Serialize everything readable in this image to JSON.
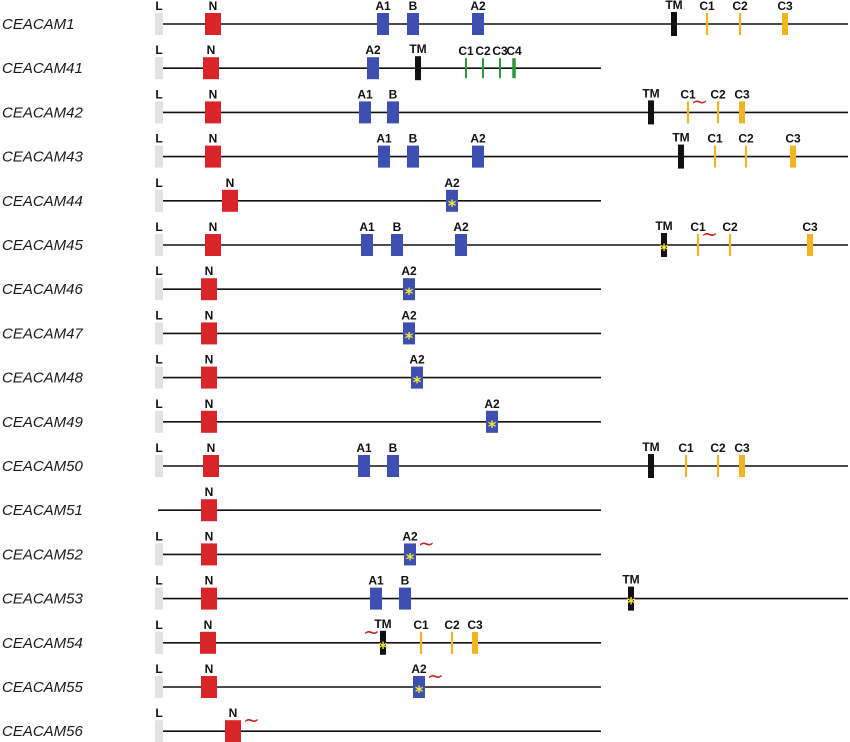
{
  "colors": {
    "L": "#e2e2e2",
    "N": "#d9252a",
    "A1": "#3d4fb0",
    "B": "#3d4fb0",
    "A2": "#3d4fb0",
    "TM": "#111111",
    "C_yellow": "#f2b51f",
    "C_green": "#2b9a3a",
    "star": "#f7ec2b",
    "tilde": "#cc1f1f"
  },
  "legend_symbols": {
    "star": "*",
    "tilde": "~"
  },
  "genes": [
    {
      "name": "CEACAM1",
      "long": true,
      "exons": [
        {
          "t": "L",
          "label": "L"
        },
        {
          "t": "N",
          "label": "N"
        },
        {
          "t": "A1",
          "label": "A1"
        },
        {
          "t": "B",
          "label": "B"
        },
        {
          "t": "A2",
          "label": "A2"
        },
        {
          "t": "TM",
          "label": "TM"
        },
        {
          "t": "C1",
          "label": "C1"
        },
        {
          "t": "C2",
          "label": "C2"
        },
        {
          "t": "C3",
          "label": "C3"
        }
      ]
    },
    {
      "name": "CEACAM41",
      "long": false,
      "exons": [
        {
          "t": "L",
          "label": "L"
        },
        {
          "t": "N",
          "label": "N"
        },
        {
          "t": "A2",
          "label": "A2"
        },
        {
          "t": "TM",
          "label": "TM"
        },
        {
          "t": "C1g",
          "label": "C1"
        },
        {
          "t": "C2g",
          "label": "C2"
        },
        {
          "t": "C3g",
          "label": "C3"
        },
        {
          "t": "C4g",
          "label": "C4"
        }
      ]
    },
    {
      "name": "CEACAM42",
      "long": true,
      "exons": [
        {
          "t": "L",
          "label": "L"
        },
        {
          "t": "N",
          "label": "N"
        },
        {
          "t": "A1",
          "label": "A1"
        },
        {
          "t": "B",
          "label": "B"
        },
        {
          "t": "TM",
          "label": "TM"
        },
        {
          "t": "C1",
          "label": "C1",
          "tilde": true
        },
        {
          "t": "C2",
          "label": "C2"
        },
        {
          "t": "C3",
          "label": "C3"
        }
      ]
    },
    {
      "name": "CEACAM43",
      "long": true,
      "exons": [
        {
          "t": "L",
          "label": "L"
        },
        {
          "t": "N",
          "label": "N"
        },
        {
          "t": "A1",
          "label": "A1"
        },
        {
          "t": "B",
          "label": "B"
        },
        {
          "t": "A2",
          "label": "A2"
        },
        {
          "t": "TM",
          "label": "TM"
        },
        {
          "t": "C1",
          "label": "C1"
        },
        {
          "t": "C2",
          "label": "C2"
        },
        {
          "t": "C3",
          "label": "C3"
        }
      ]
    },
    {
      "name": "CEACAM44",
      "long": false,
      "exons": [
        {
          "t": "L",
          "label": "L"
        },
        {
          "t": "N",
          "label": "N"
        },
        {
          "t": "A2",
          "label": "A2",
          "star": true
        }
      ]
    },
    {
      "name": "CEACAM45",
      "long": true,
      "exons": [
        {
          "t": "L",
          "label": "L"
        },
        {
          "t": "N",
          "label": "N"
        },
        {
          "t": "A1",
          "label": "A1"
        },
        {
          "t": "B",
          "label": "B"
        },
        {
          "t": "A2",
          "label": "A2"
        },
        {
          "t": "TM",
          "label": "TM",
          "star": true
        },
        {
          "t": "C1",
          "label": "C1",
          "tilde": true
        },
        {
          "t": "C2",
          "label": "C2"
        },
        {
          "t": "C3",
          "label": "C3"
        }
      ]
    },
    {
      "name": "CEACAM46",
      "long": false,
      "exons": [
        {
          "t": "L",
          "label": "L"
        },
        {
          "t": "N",
          "label": "N"
        },
        {
          "t": "A2",
          "label": "A2",
          "star": true
        }
      ]
    },
    {
      "name": "CEACAM47",
      "long": false,
      "exons": [
        {
          "t": "L",
          "label": "L"
        },
        {
          "t": "N",
          "label": "N"
        },
        {
          "t": "A2",
          "label": "A2",
          "star": true
        }
      ]
    },
    {
      "name": "CEACAM48",
      "long": false,
      "exons": [
        {
          "t": "L",
          "label": "L"
        },
        {
          "t": "N",
          "label": "N"
        },
        {
          "t": "A2",
          "label": "A2",
          "star": true
        }
      ]
    },
    {
      "name": "CEACAM49",
      "long": false,
      "exons": [
        {
          "t": "L",
          "label": "L"
        },
        {
          "t": "N",
          "label": "N"
        },
        {
          "t": "A2",
          "label": "A2",
          "star": true
        }
      ]
    },
    {
      "name": "CEACAM50",
      "long": true,
      "exons": [
        {
          "t": "L",
          "label": "L"
        },
        {
          "t": "N",
          "label": "N"
        },
        {
          "t": "A1",
          "label": "A1"
        },
        {
          "t": "B",
          "label": "B"
        },
        {
          "t": "TM",
          "label": "TM"
        },
        {
          "t": "C1",
          "label": "C1"
        },
        {
          "t": "C2",
          "label": "C2"
        },
        {
          "t": "C3",
          "label": "C3"
        }
      ]
    },
    {
      "name": "CEACAM51",
      "long": false,
      "exons": [
        {
          "t": "N",
          "label": "N"
        }
      ]
    },
    {
      "name": "CEACAM52",
      "long": false,
      "exons": [
        {
          "t": "L",
          "label": "L"
        },
        {
          "t": "N",
          "label": "N"
        },
        {
          "t": "A2",
          "label": "A2",
          "star": true,
          "tilde": true
        }
      ]
    },
    {
      "name": "CEACAM53",
      "long": true,
      "exons": [
        {
          "t": "L",
          "label": "L"
        },
        {
          "t": "N",
          "label": "N"
        },
        {
          "t": "A1",
          "label": "A1"
        },
        {
          "t": "B",
          "label": "B"
        },
        {
          "t": "TM",
          "label": "TM",
          "star": true
        }
      ]
    },
    {
      "name": "CEACAM54",
      "long": false,
      "exons": [
        {
          "t": "L",
          "label": "L"
        },
        {
          "t": "N",
          "label": "N"
        },
        {
          "t": "TM",
          "label": "TM",
          "star": true,
          "tildeLeft": true
        },
        {
          "t": "C1",
          "label": "C1"
        },
        {
          "t": "C2",
          "label": "C2"
        },
        {
          "t": "C3",
          "label": "C3"
        }
      ]
    },
    {
      "name": "CEACAM55",
      "long": false,
      "exons": [
        {
          "t": "L",
          "label": "L"
        },
        {
          "t": "N",
          "label": "N"
        },
        {
          "t": "A2",
          "label": "A2",
          "star": true,
          "tilde": true
        }
      ]
    },
    {
      "name": "CEACAM56",
      "long": false,
      "exons": [
        {
          "t": "L",
          "label": "L"
        },
        {
          "t": "N",
          "label": "N",
          "tilde": true
        }
      ]
    }
  ]
}
